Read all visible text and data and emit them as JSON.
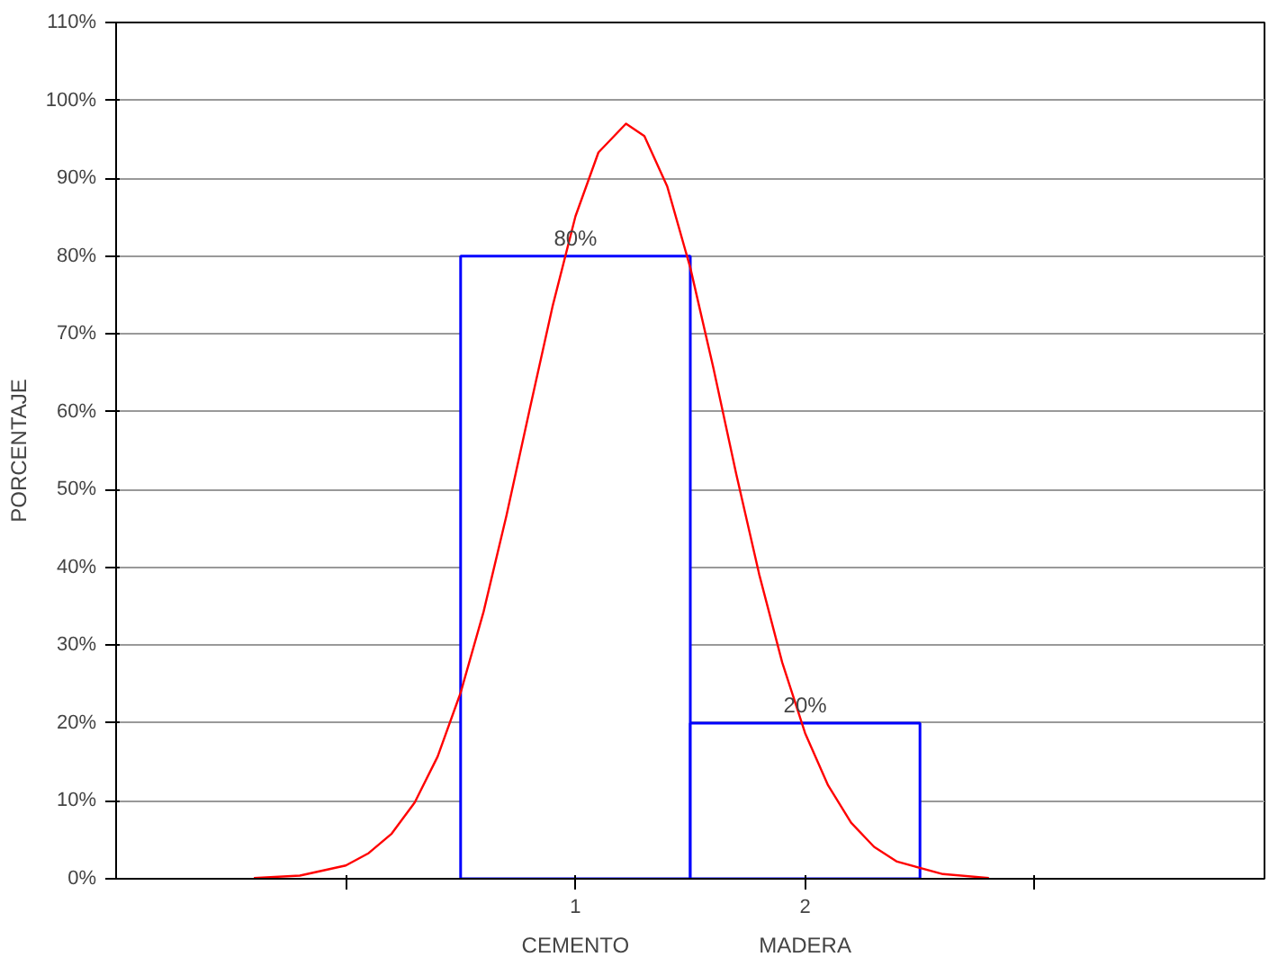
{
  "chart_data": {
    "type": "bar",
    "ylabel": "PORCENTAJE",
    "xlim": [
      -1,
      4
    ],
    "xticks": [
      {
        "value": 0,
        "label": null
      },
      1,
      2,
      {
        "value": 3,
        "label": null
      }
    ],
    "ylim": [
      0,
      110
    ],
    "yticks": [
      {
        "value": 0,
        "label": "0%"
      },
      {
        "value": 10,
        "label": "10%"
      },
      {
        "value": 20,
        "label": "20%"
      },
      {
        "value": 30,
        "label": "30%"
      },
      {
        "value": 40,
        "label": "40%"
      },
      {
        "value": 50,
        "label": "50%"
      },
      {
        "value": 60,
        "label": "60%"
      },
      {
        "value": 70,
        "label": "70%"
      },
      {
        "value": 80,
        "label": "80%"
      },
      {
        "value": 90,
        "label": "90%"
      },
      {
        "value": 100,
        "label": "100%"
      },
      {
        "value": 110,
        "label": "110%"
      }
    ],
    "grid": "y",
    "series": [
      {
        "color": "#0000ff",
        "x": [
          1,
          2
        ],
        "values": [
          80,
          20
        ],
        "value_labels": [
          "80%",
          "20%"
        ]
      },
      {
        "type": "line",
        "color": "#ff0000",
        "x": [
          -0.4,
          -0.2,
          0,
          0.1,
          0.2,
          0.3,
          0.4,
          0.5,
          0.6,
          0.7,
          0.8,
          0.9,
          1.0,
          1.1,
          1.22,
          1.3,
          1.4,
          1.5,
          1.6,
          1.7,
          1.8,
          1.9,
          2.0,
          2.1,
          2.2,
          2.3,
          2.4,
          2.6,
          2.8
        ],
        "values": [
          0.1,
          0.4,
          1.7,
          3.3,
          5.8,
          9.8,
          15.7,
          23.9,
          34.3,
          46.7,
          60.2,
          73.5,
          85.1,
          93.3,
          97,
          95.4,
          88.9,
          78.5,
          65.7,
          52.0,
          39.1,
          27.8,
          18.7,
          12.0,
          7.2,
          4.1,
          2.2,
          0.6,
          0.1
        ]
      }
    ],
    "annotations": [
      "CEMENTO",
      "MADERA"
    ]
  }
}
